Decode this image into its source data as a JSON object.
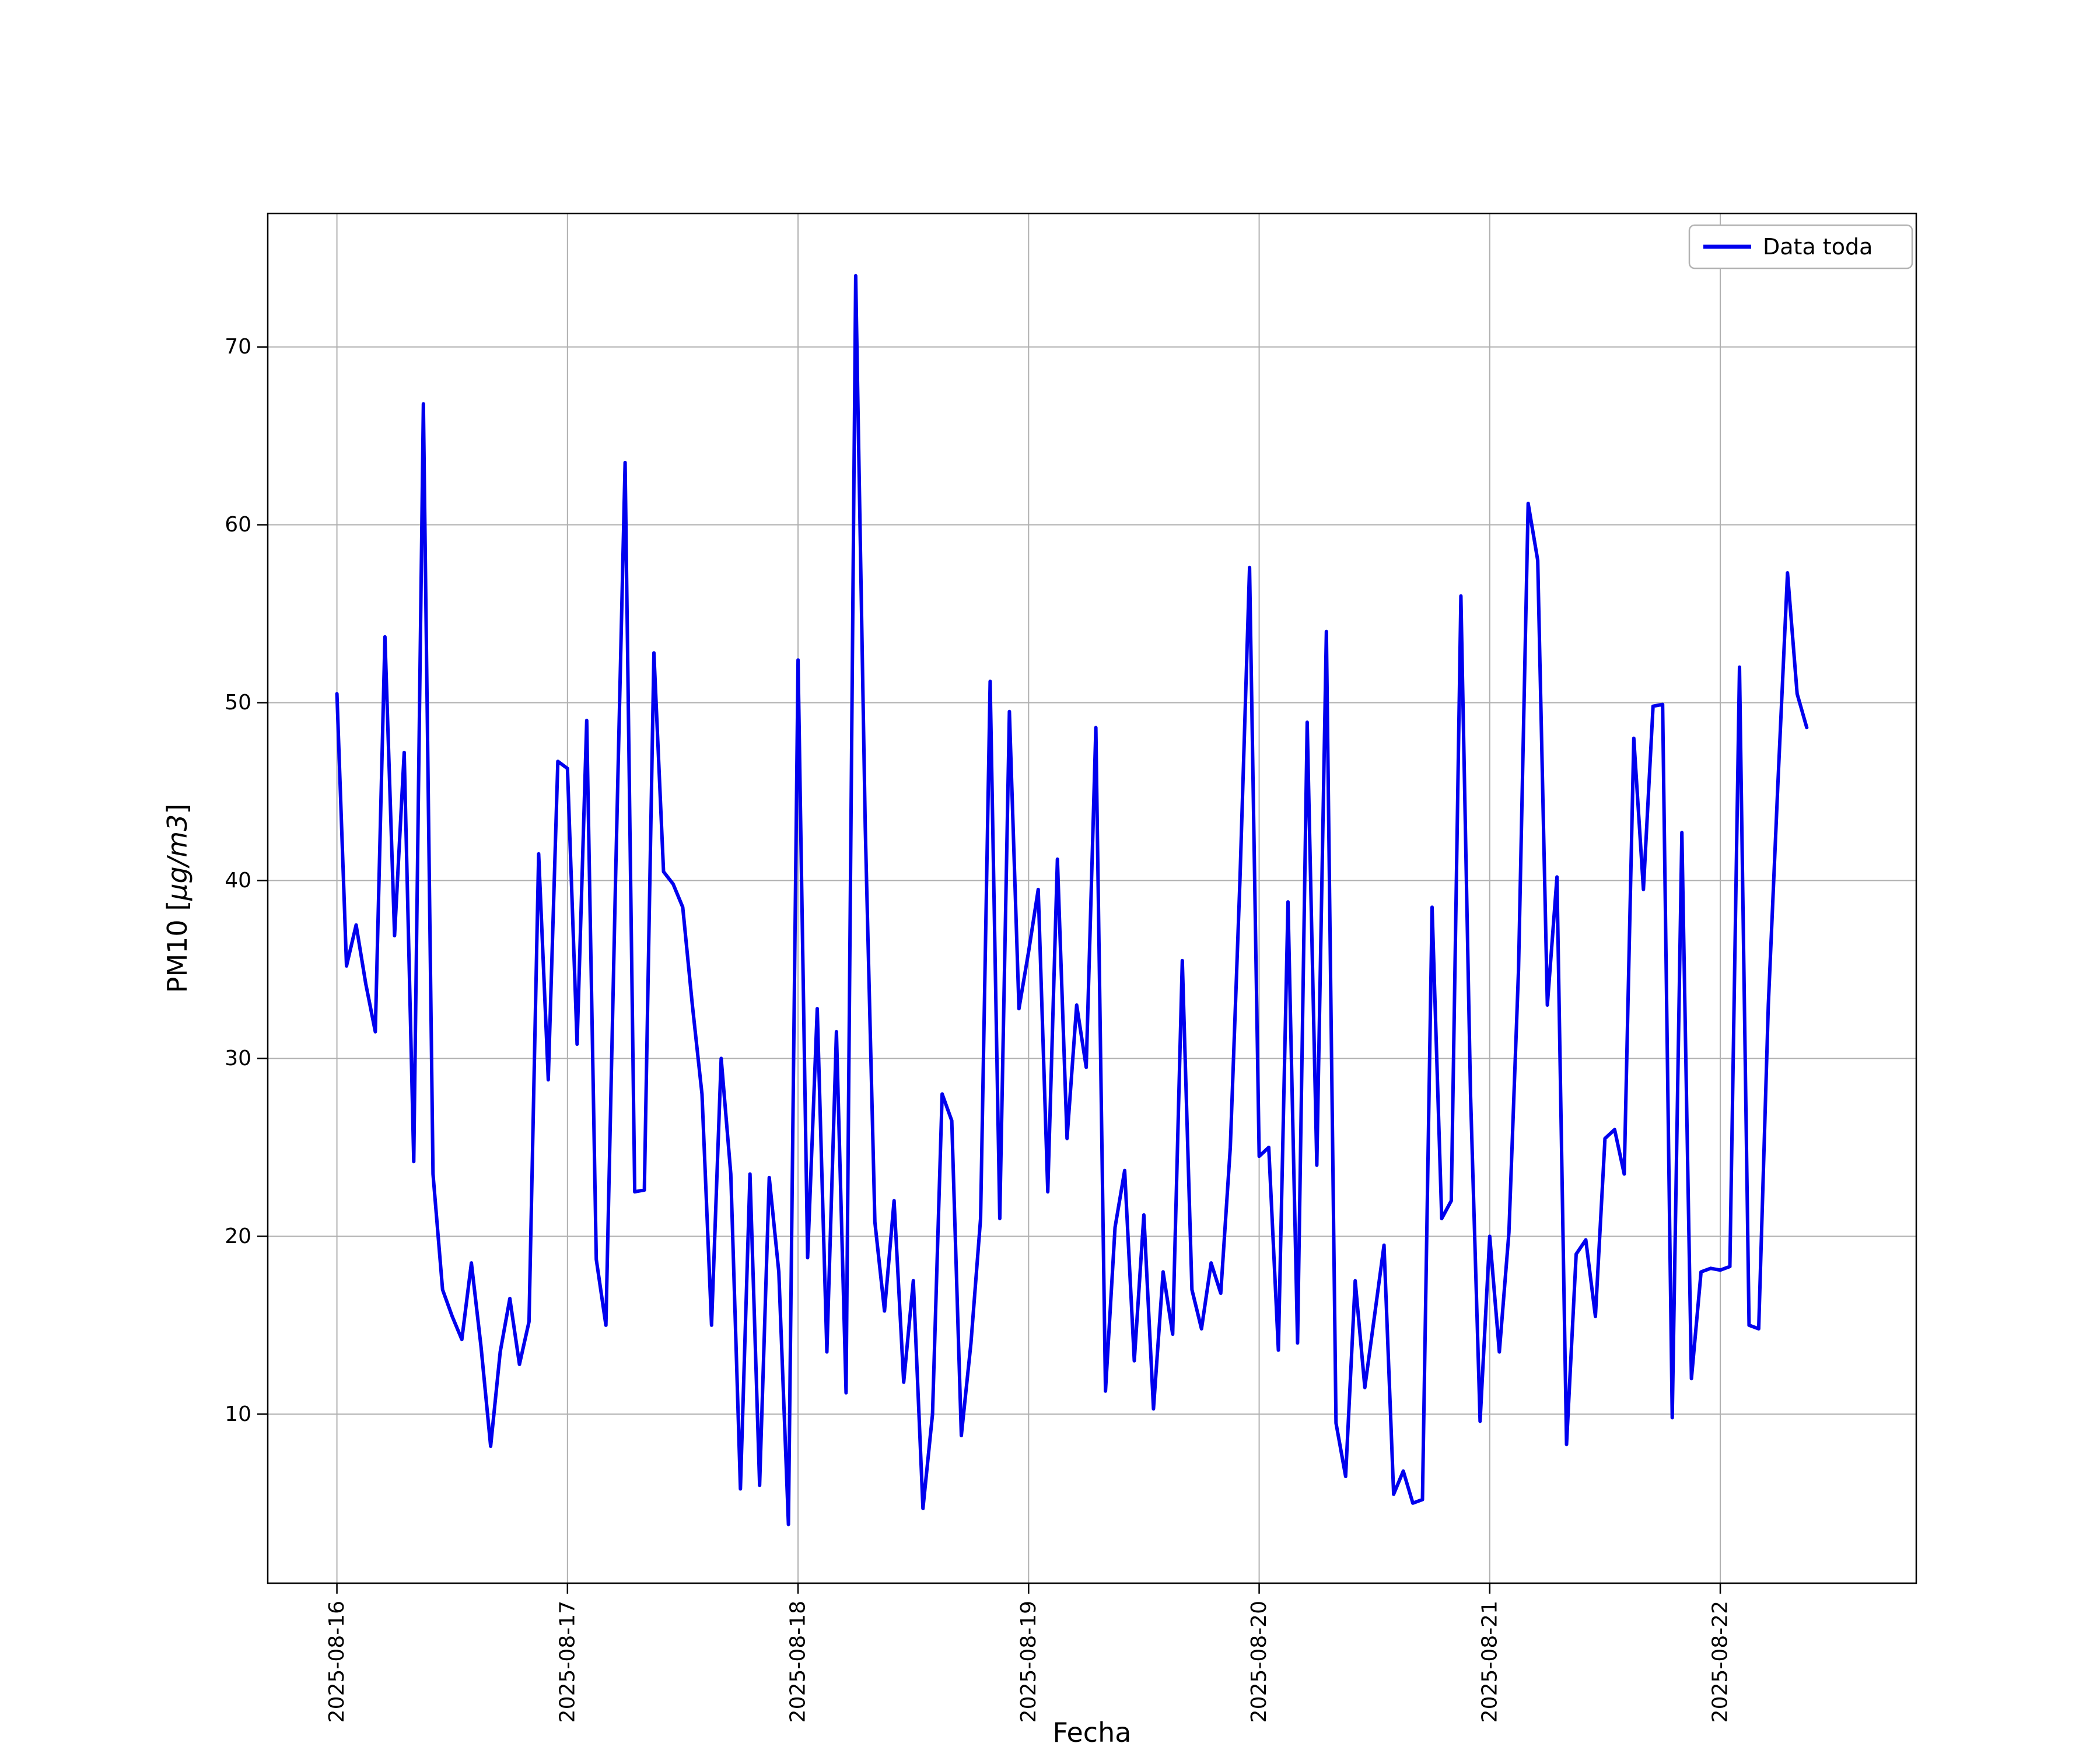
{
  "chart_data": {
    "type": "line",
    "title": "",
    "xlabel": "Fecha",
    "ylabel_prefix": "PM10 [",
    "ylabel_unit": "µg/m3",
    "ylabel_suffix": "]",
    "legend_label": "Data toda",
    "legend_position": "upper right",
    "grid": true,
    "line_color": "#0000ee",
    "grid_color": "#b0b0b0",
    "x_start": "2025-08-16 00:00",
    "x_step_hours": 1,
    "x_tick_labels": [
      "2025-08-16",
      "2025-08-17",
      "2025-08-18",
      "2025-08-19",
      "2025-08-20",
      "2025-08-21",
      "2025-08-22"
    ],
    "x_tick_days": [
      0,
      1,
      2,
      3,
      4,
      5,
      6
    ],
    "xlim_days": [
      -0.3,
      6.85
    ],
    "y_ticks": [
      10,
      20,
      30,
      40,
      50,
      60,
      70
    ],
    "ylim": [
      0.5,
      77.5
    ],
    "values": [
      50.5,
      35.2,
      37.5,
      34.2,
      31.5,
      53.7,
      36.9,
      47.2,
      24.2,
      66.8,
      23.5,
      17.0,
      15.5,
      14.2,
      18.5,
      13.8,
      8.2,
      13.5,
      16.5,
      12.8,
      15.2,
      41.5,
      28.8,
      46.7,
      46.3,
      30.8,
      49.0,
      18.7,
      15.0,
      40.0,
      63.5,
      22.5,
      22.6,
      52.8,
      40.5,
      39.8,
      38.5,
      33.0,
      28.0,
      15.0,
      30.0,
      23.5,
      5.8,
      23.5,
      6.0,
      23.3,
      18.0,
      3.8,
      52.4,
      18.8,
      32.8,
      13.5,
      31.5,
      11.2,
      74.0,
      43.0,
      20.8,
      15.8,
      22.0,
      11.8,
      17.5,
      4.7,
      10.0,
      28.0,
      26.5,
      8.8,
      14.0,
      21.0,
      51.2,
      21.0,
      49.5,
      32.8,
      36.0,
      39.5,
      22.5,
      41.2,
      25.5,
      33.0,
      29.5,
      48.6,
      11.3,
      20.5,
      23.7,
      13.0,
      21.2,
      10.3,
      18.0,
      14.5,
      35.5,
      17.0,
      14.8,
      18.5,
      16.8,
      25.0,
      40.0,
      57.6,
      24.5,
      25.0,
      13.6,
      38.8,
      14.0,
      48.9,
      24.0,
      54.0,
      9.5,
      6.5,
      17.5,
      11.5,
      15.5,
      19.5,
      5.5,
      6.8,
      5.0,
      5.2,
      38.5,
      21.0,
      22.0,
      56.0,
      28.0,
      9.6,
      20.0,
      13.5,
      20.2,
      35.0,
      61.2,
      58.0,
      33.0,
      40.2,
      8.3,
      19.0,
      19.8,
      15.5,
      25.5,
      26.0,
      23.5,
      48.0,
      39.5,
      49.8,
      49.9,
      9.8,
      42.7,
      12.0,
      18.0,
      18.2,
      18.1,
      18.3,
      52.0,
      15.0,
      14.8,
      33.0,
      45.5,
      57.3,
      50.5,
      48.6
    ]
  }
}
